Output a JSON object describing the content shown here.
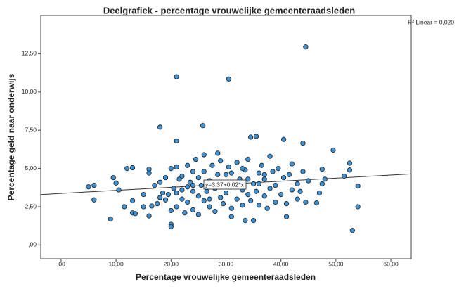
{
  "chart_data": {
    "type": "scatter",
    "title": "Deelgrafiek - percentage vrouwelijke gemeenteraadsleden",
    "x_label": "Percentage vrouwelijke gemeenteraadsleden",
    "y_label": "Percentage geld naar onderwijs",
    "r2_label": "R² Linear = 0,020",
    "fit": {
      "intercept": 3.37,
      "slope": 0.02,
      "label": "y=3,37+0,02*x",
      "color": "#333333"
    },
    "color": "#3d92d6",
    "xlim": [
      -3.7,
      63.7
    ],
    "ylim": [
      -0.9,
      15
    ],
    "xticks": [
      {
        "value": 0,
        "label": ",00"
      },
      {
        "value": 10,
        "label": "10,00"
      },
      {
        "value": 20,
        "label": "20,00"
      },
      {
        "value": 30,
        "label": "30,00"
      },
      {
        "value": 40,
        "label": "40,00"
      },
      {
        "value": 50,
        "label": "50,00"
      },
      {
        "value": 60,
        "label": "60,00"
      }
    ],
    "yticks": [
      {
        "value": 0,
        "label": ",00"
      },
      {
        "value": 2.5,
        "label": "2,50"
      },
      {
        "value": 5,
        "label": "5,00"
      },
      {
        "value": 7.5,
        "label": "7,50"
      },
      {
        "value": 10,
        "label": "10,00"
      },
      {
        "value": 12.5,
        "label": "12,50"
      }
    ],
    "x": [
      5,
      6,
      6,
      9,
      9.5,
      10,
      10.5,
      11.5,
      12,
      13,
      13,
      13.5,
      13,
      15,
      15,
      16,
      16,
      16,
      16.5,
      17,
      17.5,
      18,
      18,
      18,
      18.5,
      19,
      19,
      19.5,
      20,
      20,
      20,
      20,
      20.5,
      21,
      21,
      21,
      21,
      21,
      21.5,
      22,
      22,
      22.5,
      23,
      23,
      23,
      23.5,
      24,
      24,
      24,
      24.5,
      25,
      25,
      25,
      25.5,
      25.8,
      26,
      26,
      26,
      26.5,
      27,
      27,
      27.5,
      28,
      28,
      28.5,
      28.5,
      29,
      29,
      29.5,
      30,
      30,
      30.5,
      30.5,
      31,
      31,
      31,
      31.5,
      32,
      32,
      32.5,
      33,
      33,
      33.5,
      33.5,
      34,
      34,
      34.5,
      34.5,
      35,
      35,
      35.5,
      35.5,
      36,
      36,
      36.5,
      37,
      37,
      37.5,
      38,
      38,
      38.5,
      39,
      39,
      39.5,
      40,
      40.5,
      40.5,
      41,
      41,
      41.5,
      42,
      42,
      43,
      43,
      43.5,
      44,
      44,
      44.5,
      44.5,
      45,
      46.5,
      47,
      47.5,
      47.5,
      48,
      49.5,
      51.5,
      52.5,
      52.5,
      53,
      54,
      54,
      36,
      37,
      34,
      33,
      30,
      27,
      24,
      22
    ],
    "values": [
      3.8,
      3.9,
      2.95,
      1.7,
      4.4,
      4.05,
      3.6,
      2.5,
      5.0,
      5.05,
      2.1,
      2.05,
      2.9,
      3.3,
      2.5,
      4.95,
      4.7,
      1.9,
      2.55,
      3.9,
      2.7,
      4.1,
      3.1,
      7.7,
      3.4,
      2.95,
      4.4,
      3.3,
      5.0,
      1.35,
      1.2,
      2.25,
      3.7,
      11.0,
      6.8,
      5.1,
      3.4,
      2.5,
      4.3,
      3.0,
      4.5,
      2.1,
      3.8,
      5.2,
      2.8,
      4.1,
      3.5,
      2.3,
      4.8,
      5.6,
      3.2,
      4.4,
      2.0,
      3.9,
      7.8,
      4.8,
      5.9,
      2.9,
      3.5,
      4.2,
      2.5,
      5.2,
      3.7,
      2.2,
      4.6,
      6.0,
      3.1,
      5.5,
      2.7,
      4.0,
      3.4,
      10.85,
      5.1,
      1.85,
      4.7,
      2.4,
      3.8,
      5.4,
      3.0,
      4.3,
      2.6,
      3.6,
      1.6,
      4.9,
      3.3,
      5.6,
      7.05,
      2.9,
      1.6,
      4.0,
      7.1,
      3.5,
      4.7,
      2.6,
      5.2,
      3.2,
      4.3,
      2.4,
      5.8,
      3.7,
      4.8,
      2.8,
      3.9,
      5.0,
      3.3,
      6.9,
      4.4,
      1.85,
      2.7,
      4.6,
      3.6,
      5.3,
      3.0,
      4.0,
      3.5,
      6.65,
      4.8,
      12.95,
      2.8,
      4.2,
      2.75,
      3.4,
      4.0,
      4.95,
      4.3,
      6.2,
      4.5,
      4.9,
      5.35,
      0.95,
      2.5,
      3.85,
      4.0,
      4.6,
      4.3,
      5.0,
      4.6,
      3.0,
      3.9,
      3.6
    ]
  }
}
